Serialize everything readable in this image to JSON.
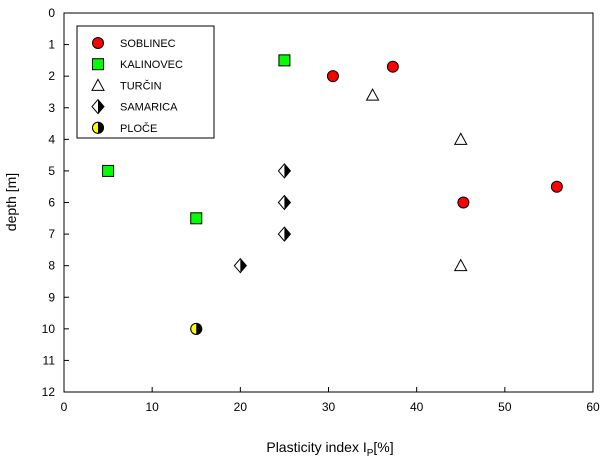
{
  "chart_data": {
    "type": "scatter",
    "x_axis": {
      "label_main": "Plasticity index  I",
      "label_sub": "P",
      "label_unit": "[%]",
      "range": [
        0,
        60
      ],
      "ticks": [
        "0",
        "10",
        "20",
        "30",
        "40",
        "50",
        "60"
      ],
      "tick_values": [
        0,
        10,
        20,
        30,
        40,
        50,
        60
      ]
    },
    "y_axis": {
      "label": "depth [m]",
      "range": [
        0,
        12
      ],
      "inverted": true,
      "ticks": [
        "0",
        "1",
        "2",
        "3",
        "4",
        "5",
        "6",
        "7",
        "8",
        "9",
        "10",
        "11",
        "12"
      ],
      "tick_values": [
        0,
        1,
        2,
        3,
        4,
        5,
        6,
        7,
        8,
        9,
        10,
        11,
        12
      ]
    },
    "grid": false,
    "legend_position": "top-left",
    "series": [
      {
        "name": "SOBLINEC",
        "marker": "circle",
        "color": "#ff0000",
        "points": [
          [
            30.5,
            2.0
          ],
          [
            37.3,
            1.7
          ],
          [
            45.3,
            6.0
          ],
          [
            55.9,
            5.5
          ]
        ]
      },
      {
        "name": "KALINOVEC",
        "marker": "square",
        "color": "#00ff00",
        "points": [
          [
            25.0,
            1.5
          ],
          [
            5.0,
            5.0
          ],
          [
            15.0,
            6.5
          ]
        ]
      },
      {
        "name": "TURČIN",
        "marker": "triangle",
        "color": "#ffffff",
        "points": [
          [
            35.0,
            2.6
          ],
          [
            45.0,
            4.0
          ],
          [
            45.0,
            8.0
          ]
        ]
      },
      {
        "name": "SAMARICA",
        "marker": "diamond-half",
        "color": "#000000",
        "points": [
          [
            25.0,
            5.0
          ],
          [
            25.0,
            6.0
          ],
          [
            25.0,
            7.0
          ],
          [
            20.0,
            8.0
          ]
        ]
      },
      {
        "name": "PLOČE",
        "marker": "circle-half",
        "color": "#ffff00",
        "points": [
          [
            15.0,
            10.0
          ]
        ]
      }
    ]
  }
}
